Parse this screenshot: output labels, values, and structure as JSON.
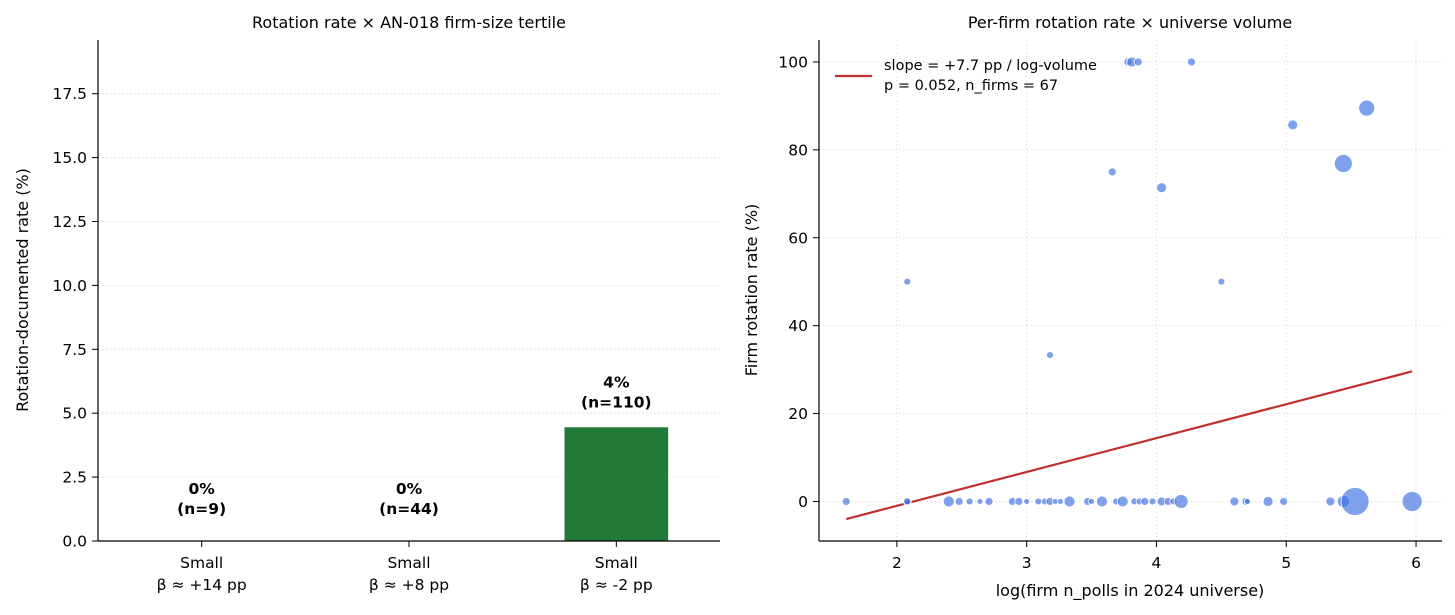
{
  "colors": {
    "bar": "#217a38",
    "point": "#3b6fe0",
    "trend": "#c0312c",
    "grid": "#d8d8d8"
  },
  "chart_data": [
    {
      "type": "bar",
      "title": "Rotation rate × AN-018 firm-size tertile",
      "xlabel": "",
      "ylabel": "Rotation-documented rate (%)",
      "ylim": [
        0,
        19.6
      ],
      "yticks": [
        "0.0",
        "2.5",
        "5.0",
        "7.5",
        "10.0",
        "12.5",
        "15.0",
        "17.5"
      ],
      "grid": "y-dotted",
      "categories": [
        {
          "line1": "Small",
          "line2": "β ≈ +14 pp"
        },
        {
          "line1": "Small",
          "line2": "β ≈ +8 pp"
        },
        {
          "line1": "Small",
          "line2": "β ≈ -2 pp"
        }
      ],
      "values": [
        0,
        0,
        4.45
      ],
      "labels": [
        {
          "pct": "0%",
          "n": "(n=9)"
        },
        {
          "pct": "0%",
          "n": "(n=44)"
        },
        {
          "pct": "4%",
          "n": "(n=110)"
        }
      ]
    },
    {
      "type": "scatter",
      "title": "Per-firm rotation rate × universe volume",
      "xlabel": "log(firm n_polls in 2024 universe)",
      "ylabel": "Firm rotation rate (%)",
      "xlim": [
        1.4,
        6.2
      ],
      "ylim": [
        -9,
        105
      ],
      "xticks": [
        "2",
        "3",
        "4",
        "5",
        "6"
      ],
      "yticks": [
        "0",
        "20",
        "40",
        "60",
        "80",
        "100"
      ],
      "grid": "both-dotted",
      "legend": {
        "position": "top-left",
        "line1": "slope = +7.7 pp / log-volume",
        "line2": "p = 0.052, n_firms = 67"
      },
      "trend": {
        "x": [
          1.61,
          5.97
        ],
        "y": [
          -4.0,
          29.6
        ]
      },
      "points": [
        {
          "x": 1.61,
          "y": 0,
          "s": 4
        },
        {
          "x": 2.08,
          "y": 0,
          "s": 4
        },
        {
          "x": 2.08,
          "y": 0,
          "s": 3.5
        },
        {
          "x": 2.08,
          "y": 50,
          "s": 3.5
        },
        {
          "x": 2.4,
          "y": 0,
          "s": 5.5
        },
        {
          "x": 2.48,
          "y": 0,
          "s": 4
        },
        {
          "x": 2.56,
          "y": 0,
          "s": 3.5
        },
        {
          "x": 2.64,
          "y": 0,
          "s": 3
        },
        {
          "x": 2.71,
          "y": 0,
          "s": 4
        },
        {
          "x": 2.89,
          "y": 0,
          "s": 4
        },
        {
          "x": 2.94,
          "y": 0,
          "s": 4
        },
        {
          "x": 3.0,
          "y": 0,
          "s": 3
        },
        {
          "x": 3.09,
          "y": 0,
          "s": 3.5
        },
        {
          "x": 3.14,
          "y": 0,
          "s": 3.5
        },
        {
          "x": 3.18,
          "y": 0,
          "s": 4
        },
        {
          "x": 3.18,
          "y": 33.3,
          "s": 3.5
        },
        {
          "x": 3.22,
          "y": 0,
          "s": 3
        },
        {
          "x": 3.33,
          "y": 0,
          "s": 5.5
        },
        {
          "x": 3.26,
          "y": 0,
          "s": 3
        },
        {
          "x": 3.47,
          "y": 0,
          "s": 4
        },
        {
          "x": 3.5,
          "y": 0,
          "s": 3
        },
        {
          "x": 3.58,
          "y": 0,
          "s": 5.5
        },
        {
          "x": 3.66,
          "y": 75,
          "s": 4
        },
        {
          "x": 3.69,
          "y": 0,
          "s": 3.5
        },
        {
          "x": 3.74,
          "y": 0,
          "s": 5.5
        },
        {
          "x": 3.78,
          "y": 100,
          "s": 4
        },
        {
          "x": 3.81,
          "y": 100,
          "s": 5
        },
        {
          "x": 3.86,
          "y": 100,
          "s": 4
        },
        {
          "x": 3.83,
          "y": 0,
          "s": 3.5
        },
        {
          "x": 3.87,
          "y": 0,
          "s": 3.5
        },
        {
          "x": 3.91,
          "y": 0,
          "s": 4
        },
        {
          "x": 3.97,
          "y": 0,
          "s": 3.5
        },
        {
          "x": 4.04,
          "y": 71.4,
          "s": 5
        },
        {
          "x": 4.04,
          "y": 0,
          "s": 4.5
        },
        {
          "x": 4.09,
          "y": 0,
          "s": 4
        },
        {
          "x": 4.13,
          "y": 0,
          "s": 3.5
        },
        {
          "x": 4.19,
          "y": 0,
          "s": 7
        },
        {
          "x": 4.27,
          "y": 100,
          "s": 4
        },
        {
          "x": 4.5,
          "y": 50,
          "s": 3.5
        },
        {
          "x": 4.6,
          "y": 0,
          "s": 4.5
        },
        {
          "x": 4.69,
          "y": 0,
          "s": 4
        },
        {
          "x": 4.7,
          "y": 0,
          "s": 3
        },
        {
          "x": 4.86,
          "y": 0,
          "s": 5
        },
        {
          "x": 4.98,
          "y": 0,
          "s": 4
        },
        {
          "x": 5.05,
          "y": 85.7,
          "s": 5
        },
        {
          "x": 5.34,
          "y": 0,
          "s": 4.5
        },
        {
          "x": 5.44,
          "y": 0,
          "s": 6
        },
        {
          "x": 5.44,
          "y": 76.9,
          "s": 9
        },
        {
          "x": 5.53,
          "y": 0,
          "s": 14
        },
        {
          "x": 5.62,
          "y": 89.5,
          "s": 8
        },
        {
          "x": 5.97,
          "y": 0,
          "s": 10
        }
      ]
    }
  ]
}
